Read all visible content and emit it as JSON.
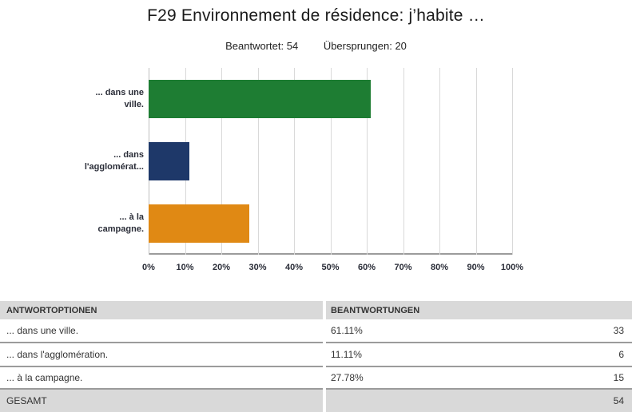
{
  "title": "F29 Environnement de résidence: j’habite …",
  "stats": {
    "answered_label": "Beantwortet:",
    "answered_value": "54",
    "skipped_label": "Übersprungen:",
    "skipped_value": "20"
  },
  "chart_data": {
    "type": "bar",
    "orientation": "horizontal",
    "categories": [
      "... dans une ville.",
      "... dans l'agglomération.",
      "... à la campagne."
    ],
    "category_label_lines": [
      [
        "... dans une",
        "ville."
      ],
      [
        "... dans",
        "l'agglomérat..."
      ],
      [
        "... à la",
        "campagne."
      ]
    ],
    "values": [
      61.11,
      11.11,
      27.78
    ],
    "value_unit": "%",
    "bar_colors": [
      "#1e7d33",
      "#1e3869",
      "#e08914"
    ],
    "xlim": [
      0,
      100
    ],
    "x_ticks": [
      "0%",
      "10%",
      "20%",
      "30%",
      "40%",
      "50%",
      "60%",
      "70%",
      "80%",
      "90%",
      "100%"
    ],
    "grid": "vertical",
    "legend": "none",
    "title": ""
  },
  "table": {
    "headers": {
      "options": "ANTWORTOPTIONEN",
      "answers": "BEANTWORTUNGEN"
    },
    "rows": [
      {
        "option": "... dans une ville.",
        "percent": "61.11%",
        "count": "33"
      },
      {
        "option": "... dans l'agglomération.",
        "percent": "11.11%",
        "count": "6"
      },
      {
        "option": "... à la campagne.",
        "percent": "27.78%",
        "count": "15"
      }
    ],
    "total": {
      "label": "GESAMT",
      "count": "54"
    }
  },
  "colors": {
    "bar_green": "#1e7d33",
    "bar_navy": "#1e3869",
    "bar_orange": "#e08914",
    "table_header_bg": "#d9d9d9",
    "row_separator": "#9b9b9b",
    "gridline": "#d9d9d9",
    "axis_line": "#9b9b9b"
  }
}
